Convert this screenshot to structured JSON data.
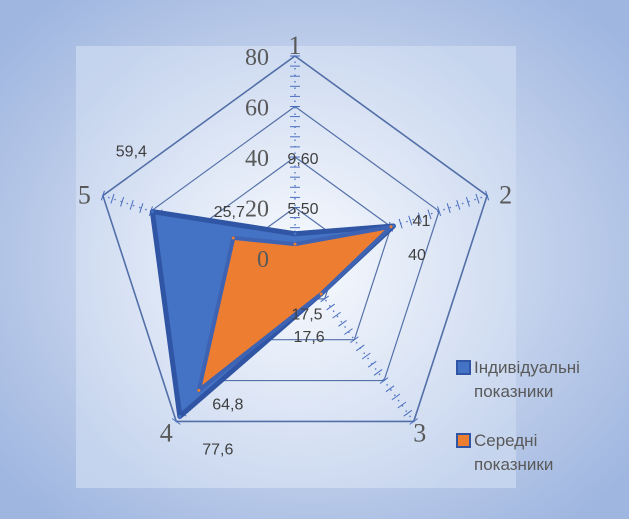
{
  "chart_data": {
    "type": "radar",
    "categories": [
      "1",
      "2",
      "3",
      "4",
      "5"
    ],
    "radial_ticks": [
      "0",
      "20",
      "40",
      "60",
      "80"
    ],
    "rmax": 80,
    "series": [
      {
        "name": "Індивідуальні показники",
        "color": "#4472C4",
        "values": [
          9.6,
          41,
          17.5,
          77.6,
          59.4
        ],
        "labels": [
          "9,60",
          "41",
          "17,5",
          "77,6",
          "59,4"
        ]
      },
      {
        "name": "Середні показники",
        "color": "#ED7D31",
        "values": [
          5.5,
          40,
          17.6,
          64.8,
          25.7
        ],
        "labels": [
          "5,50",
          "40",
          "17,6",
          "64,8",
          "25,7"
        ]
      }
    ],
    "legend_position": "right"
  }
}
